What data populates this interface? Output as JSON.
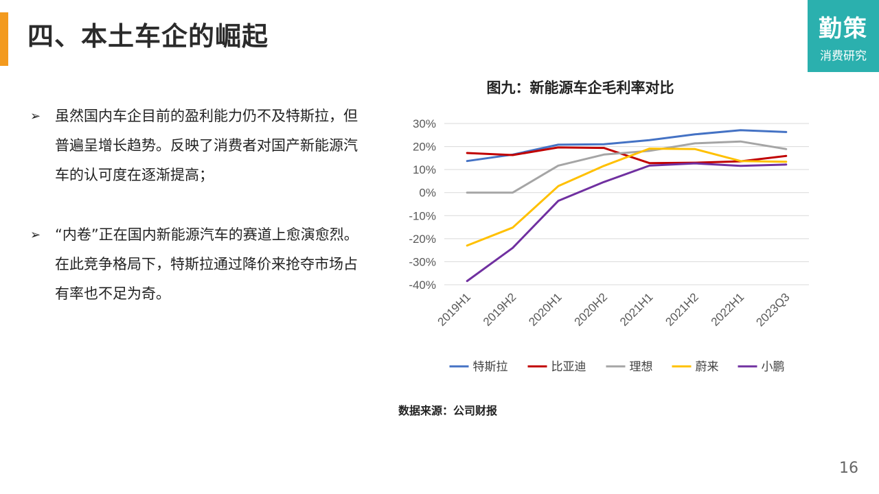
{
  "page": {
    "title": "四、本土车企的崛起",
    "number": "16"
  },
  "logo": {
    "main": "勤策",
    "sub": "消费研究"
  },
  "bullets": [
    {
      "mark": "➢",
      "text": "虽然国内车企目前的盈利能力仍不及特斯拉，但普遍呈增长趋势。反映了消费者对国产新能源汽车的认可度在逐渐提高；"
    },
    {
      "mark": "➢",
      "text": "“内卷”正在国内新能源汽车的赛道上愈演愈烈。在此竞争格局下，特斯拉通过降价来抢夺市场占有率也不足为奇。"
    }
  ],
  "source_note": "数据来源：公司财报",
  "chart_data": {
    "type": "line",
    "title": "图九：新能源车企毛利率对比",
    "xlabel": "",
    "ylabel": "",
    "categories": [
      "2019H1",
      "2019H2",
      "2020H1",
      "2020H2",
      "2021H1",
      "2021H2",
      "2022H1",
      "2023Q3"
    ],
    "ylim": [
      -40,
      30
    ],
    "yticks": [
      -40,
      -30,
      -20,
      -10,
      0,
      10,
      20,
      30
    ],
    "ytick_labels": [
      "-40%",
      "-30%",
      "-20%",
      "-10%",
      "0%",
      "10%",
      "20%",
      "30%"
    ],
    "grid": true,
    "legend": "bottom",
    "series": [
      {
        "name": "特斯拉",
        "color": "#4472C4",
        "values": [
          13.7,
          16.5,
          20.8,
          21.0,
          22.8,
          25.3,
          27.1,
          26.3
        ]
      },
      {
        "name": "比亚迪",
        "color": "#C00000",
        "values": [
          17.2,
          16.3,
          19.6,
          19.4,
          12.8,
          13.0,
          13.6,
          15.9
        ]
      },
      {
        "name": "理想",
        "color": "#A5A5A5",
        "values": [
          0,
          0,
          11.7,
          16.5,
          18.1,
          21.4,
          22.2,
          18.9
        ]
      },
      {
        "name": "蔚来",
        "color": "#FFC000",
        "values": [
          -23.0,
          -15.2,
          2.8,
          11.6,
          19.1,
          18.9,
          13.7,
          13.4
        ]
      },
      {
        "name": "小鹏",
        "color": "#7030A0",
        "values": [
          -38.4,
          -24.0,
          -3.6,
          4.6,
          11.7,
          12.7,
          11.6,
          12.2
        ]
      }
    ]
  }
}
